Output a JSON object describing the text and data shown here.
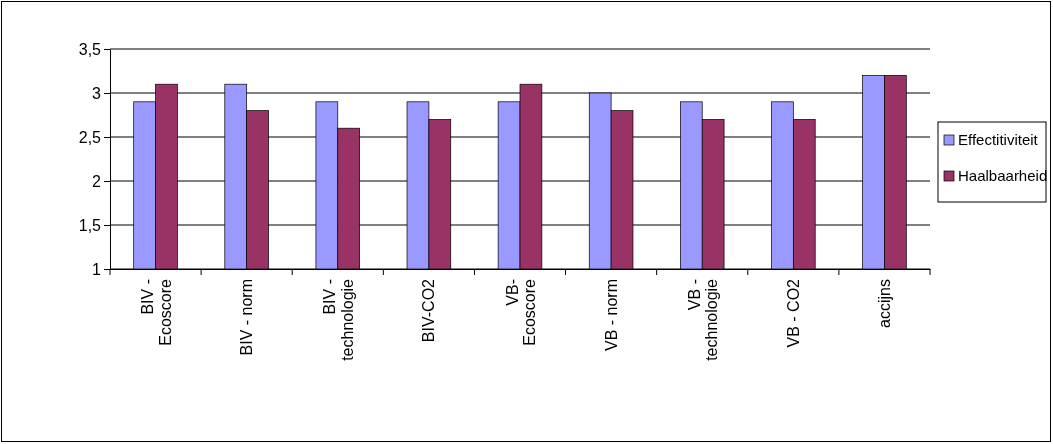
{
  "chart_data": {
    "type": "bar",
    "categories": [
      "BIV - Ecoscore",
      "BIV - norm",
      "BIV - technologie",
      "BIV-CO2",
      "VB- Ecoscore",
      "VB - norm",
      "VB - technologie",
      "VB - CO2",
      "accijns"
    ],
    "series": [
      {
        "name": "Effectitiviteit",
        "color": "#9999ff",
        "values": [
          2.9,
          3.1,
          2.9,
          2.9,
          2.9,
          3.0,
          2.9,
          2.9,
          3.2
        ]
      },
      {
        "name": "Haalbaarheid",
        "color": "#993366",
        "values": [
          3.1,
          2.8,
          2.6,
          2.7,
          3.1,
          2.8,
          2.7,
          2.7,
          3.2
        ]
      }
    ],
    "ylim": [
      1,
      3.5
    ],
    "yticks": [
      1,
      {
        "value": 1.5,
        "label": "1,5"
      },
      2,
      {
        "value": 2.5,
        "label": "2,5"
      },
      3,
      {
        "value": 3.5,
        "label": "3,5"
      }
    ],
    "grid": "y",
    "legend": "right"
  }
}
